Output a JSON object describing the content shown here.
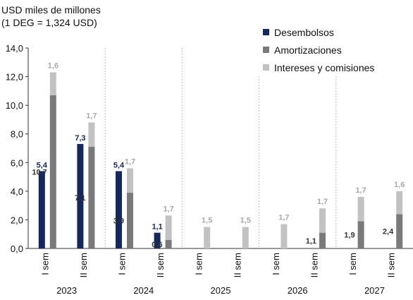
{
  "unit_line1": "USD miles de millones",
  "unit_line2": "(1 DEG = 1,324 USD)",
  "legend": [
    {
      "label": "Desembolsos",
      "color": "#14285f"
    },
    {
      "label": "Amortizaciones",
      "color": "#7a7a7a"
    },
    {
      "label": "Intereses y comisiones",
      "color": "#c2c2c2"
    }
  ],
  "chart_data": {
    "type": "bar",
    "stacked": true,
    "ylim": [
      0,
      14
    ],
    "yticks": [
      "0,0",
      "2,0",
      "4,0",
      "6,0",
      "8,0",
      "10,0",
      "12,0",
      "14,0"
    ],
    "years": [
      "2023",
      "2024",
      "2025",
      "2026",
      "2027"
    ],
    "semester_labels": [
      "I sem",
      "II sem"
    ],
    "categories": [
      "2023 I sem",
      "2023 II sem",
      "2024 I sem",
      "2024 II sem",
      "2025 I sem",
      "2025 II sem",
      "2026 I sem",
      "2026 II sem",
      "2027 I sem",
      "2027 II sem"
    ],
    "groups": [
      [
        {
          "series": "Desembolsos",
          "value": 5.4,
          "label": "5,4"
        },
        {
          "stack": [
            {
              "series": "Amortizaciones",
              "value": 10.7,
              "label": "10,7"
            },
            {
              "series": "Intereses y comisiones",
              "value": 1.6,
              "label": "1,6"
            }
          ]
        }
      ],
      [
        {
          "series": "Desembolsos",
          "value": 7.3,
          "label": "7,3"
        },
        {
          "stack": [
            {
              "series": "Amortizaciones",
              "value": 7.1,
              "label": "7,1"
            },
            {
              "series": "Intereses y comisiones",
              "value": 1.7,
              "label": "1,7"
            }
          ]
        }
      ],
      [
        {
          "series": "Desembolsos",
          "value": 5.4,
          "label": "5,4"
        },
        {
          "stack": [
            {
              "series": "Amortizaciones",
              "value": 3.9,
              "label": "3,9"
            },
            {
              "series": "Intereses y comisiones",
              "value": 1.7,
              "label": "1,7"
            }
          ]
        }
      ],
      [
        {
          "series": "Desembolsos",
          "value": 1.1,
          "label": "1,1"
        },
        {
          "stack": [
            {
              "series": "Amortizaciones",
              "value": 0.6,
              "label": "0,6"
            },
            {
              "series": "Intereses y comisiones",
              "value": 1.7,
              "label": "1,7"
            }
          ]
        }
      ],
      [
        {
          "stack": [
            {
              "series": "Intereses y comisiones",
              "value": 1.5,
              "label": "1,5"
            }
          ]
        }
      ],
      [
        {
          "stack": [
            {
              "series": "Intereses y comisiones",
              "value": 1.5,
              "label": "1,5"
            }
          ]
        }
      ],
      [
        {
          "stack": [
            {
              "series": "Intereses y comisiones",
              "value": 1.7,
              "label": "1,7"
            }
          ]
        }
      ],
      [
        {
          "stack": [
            {
              "series": "Amortizaciones",
              "value": 1.1,
              "label": "1,1"
            },
            {
              "series": "Intereses y comisiones",
              "value": 1.7,
              "label": "1,7"
            }
          ]
        }
      ],
      [
        {
          "stack": [
            {
              "series": "Amortizaciones",
              "value": 1.9,
              "label": "1,9"
            },
            {
              "series": "Intereses y comisiones",
              "value": 1.7,
              "label": "1,7"
            }
          ]
        }
      ],
      [
        {
          "stack": [
            {
              "series": "Amortizaciones",
              "value": 2.4,
              "label": "2,4"
            },
            {
              "series": "Intereses y comisiones",
              "value": 1.6,
              "label": "1,6"
            }
          ]
        }
      ]
    ]
  }
}
